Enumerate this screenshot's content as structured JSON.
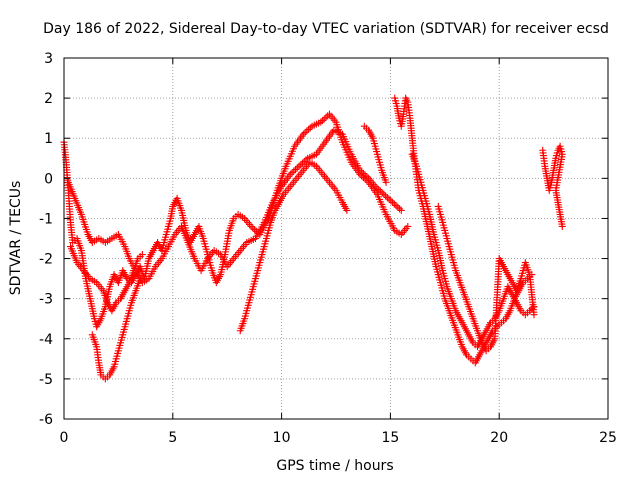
{
  "chart_data": {
    "type": "scatter",
    "title": "Day 186 of 2022, Sidereal Day-to-day VTEC variation (SDTVAR) for receiver ecsd",
    "xlabel": "GPS time / hours",
    "ylabel": "SDTVAR / TECUs",
    "xlim": [
      0,
      25
    ],
    "ylim": [
      -6,
      3
    ],
    "x_ticks": [
      0,
      5,
      10,
      15,
      20,
      25
    ],
    "y_ticks": [
      -6,
      -5,
      -4,
      -3,
      -2,
      -1,
      0,
      1,
      2,
      3
    ],
    "x_tick_labels": [
      "0",
      "5",
      "10",
      "15",
      "20",
      "25"
    ],
    "y_tick_labels": [
      "-6",
      "-5",
      "-4",
      "-3",
      "-2",
      "-1",
      "0",
      "1",
      "2",
      "3"
    ],
    "grid": true,
    "marker": "+",
    "color": "#ff0000",
    "series": [
      {
        "name": "trace-a",
        "points": [
          [
            0.0,
            0.9
          ],
          [
            0.1,
            0.4
          ],
          [
            0.2,
            -0.3
          ],
          [
            0.3,
            -1.1
          ],
          [
            0.4,
            -1.6
          ],
          [
            0.6,
            -1.5
          ],
          [
            0.8,
            -1.8
          ],
          [
            1.0,
            -2.5
          ],
          [
            1.2,
            -3.0
          ],
          [
            1.4,
            -3.5
          ],
          [
            1.5,
            -3.7
          ],
          [
            1.7,
            -3.5
          ],
          [
            1.9,
            -3.2
          ],
          [
            2.1,
            -2.7
          ],
          [
            2.3,
            -2.4
          ],
          [
            2.5,
            -2.6
          ],
          [
            2.7,
            -2.3
          ],
          [
            2.9,
            -2.5
          ],
          [
            3.1,
            -2.6
          ],
          [
            3.3,
            -2.4
          ],
          [
            3.5,
            -2.2
          ],
          [
            3.7,
            -2.5
          ],
          [
            3.9,
            -2.0
          ],
          [
            4.1,
            -1.8
          ],
          [
            4.3,
            -1.6
          ],
          [
            4.5,
            -1.8
          ],
          [
            4.7,
            -1.4
          ],
          [
            4.9,
            -1.0
          ],
          [
            5.0,
            -0.7
          ],
          [
            5.2,
            -0.5
          ],
          [
            5.4,
            -0.8
          ],
          [
            5.6,
            -1.3
          ],
          [
            5.8,
            -1.6
          ],
          [
            6.0,
            -1.4
          ],
          [
            6.2,
            -1.2
          ],
          [
            6.4,
            -1.5
          ],
          [
            6.6,
            -1.9
          ],
          [
            6.8,
            -2.3
          ],
          [
            7.0,
            -2.6
          ],
          [
            7.2,
            -2.4
          ],
          [
            7.4,
            -1.9
          ],
          [
            7.6,
            -1.3
          ],
          [
            7.8,
            -1.0
          ],
          [
            8.0,
            -0.9
          ],
          [
            8.3,
            -1.0
          ],
          [
            8.6,
            -1.2
          ],
          [
            9.0,
            -1.4
          ],
          [
            9.4,
            -1.0
          ],
          [
            9.8,
            -0.3
          ],
          [
            10.2,
            0.3
          ],
          [
            10.6,
            0.8
          ],
          [
            11.0,
            1.1
          ],
          [
            11.4,
            1.3
          ],
          [
            11.8,
            1.4
          ],
          [
            12.2,
            1.6
          ],
          [
            12.5,
            1.4
          ],
          [
            12.8,
            0.9
          ],
          [
            13.2,
            0.4
          ],
          [
            13.6,
            0.1
          ],
          [
            14.0,
            -0.1
          ],
          [
            14.4,
            -0.4
          ],
          [
            14.8,
            -0.9
          ],
          [
            15.2,
            -1.3
          ],
          [
            15.5,
            -1.4
          ],
          [
            15.8,
            -1.2
          ]
        ]
      },
      {
        "name": "trace-b",
        "points": [
          [
            0.2,
            -0.1
          ],
          [
            0.5,
            -0.5
          ],
          [
            0.8,
            -0.9
          ],
          [
            1.1,
            -1.4
          ],
          [
            1.3,
            -1.6
          ],
          [
            1.6,
            -1.5
          ],
          [
            1.9,
            -1.6
          ],
          [
            2.2,
            -1.5
          ],
          [
            2.5,
            -1.4
          ],
          [
            2.8,
            -1.7
          ],
          [
            3.0,
            -2.0
          ],
          [
            3.3,
            -2.3
          ],
          [
            3.6,
            -2.6
          ],
          [
            3.9,
            -2.5
          ],
          [
            4.2,
            -2.2
          ],
          [
            4.5,
            -2.0
          ],
          [
            4.8,
            -1.7
          ],
          [
            5.1,
            -1.4
          ],
          [
            5.4,
            -1.2
          ],
          [
            5.7,
            -1.6
          ],
          [
            6.0,
            -2.0
          ],
          [
            6.3,
            -2.3
          ],
          [
            6.6,
            -2.0
          ],
          [
            6.9,
            -1.8
          ],
          [
            7.2,
            -1.9
          ],
          [
            7.5,
            -2.2
          ],
          [
            7.8,
            -2.0
          ],
          [
            8.1,
            -1.8
          ],
          [
            8.4,
            -1.6
          ],
          [
            8.8,
            -1.5
          ],
          [
            9.2,
            -1.1
          ],
          [
            9.6,
            -0.6
          ],
          [
            10.0,
            -0.2
          ],
          [
            10.4,
            0.1
          ],
          [
            10.8,
            0.3
          ],
          [
            11.2,
            0.5
          ],
          [
            11.6,
            0.6
          ],
          [
            12.0,
            0.9
          ],
          [
            12.4,
            1.2
          ],
          [
            12.8,
            1.1
          ],
          [
            13.2,
            0.6
          ],
          [
            13.6,
            0.2
          ],
          [
            14.0,
            0.0
          ],
          [
            14.3,
            -0.2
          ],
          [
            14.7,
            -0.4
          ],
          [
            15.1,
            -0.6
          ],
          [
            15.5,
            -0.8
          ]
        ]
      },
      {
        "name": "trace-c",
        "points": [
          [
            0.3,
            -1.7
          ],
          [
            0.6,
            -2.1
          ],
          [
            0.9,
            -2.3
          ],
          [
            1.2,
            -2.5
          ],
          [
            1.5,
            -2.6
          ],
          [
            1.8,
            -2.8
          ],
          [
            2.0,
            -3.1
          ],
          [
            2.2,
            -3.3
          ],
          [
            2.4,
            -3.1
          ],
          [
            2.6,
            -3.0
          ],
          [
            2.8,
            -2.8
          ],
          [
            3.0,
            -2.6
          ],
          [
            3.2,
            -2.3
          ],
          [
            3.4,
            -2.0
          ],
          [
            3.6,
            -1.9
          ]
        ]
      },
      {
        "name": "trace-d",
        "points": [
          [
            1.3,
            -3.9
          ],
          [
            1.5,
            -4.2
          ],
          [
            1.6,
            -4.6
          ],
          [
            1.7,
            -4.9
          ],
          [
            1.9,
            -5.0
          ],
          [
            2.1,
            -4.9
          ],
          [
            2.3,
            -4.7
          ],
          [
            2.5,
            -4.3
          ],
          [
            2.7,
            -3.9
          ],
          [
            2.9,
            -3.5
          ],
          [
            3.1,
            -3.1
          ],
          [
            3.3,
            -2.8
          ],
          [
            3.5,
            -2.5
          ]
        ]
      },
      {
        "name": "trace-e",
        "points": [
          [
            8.1,
            -3.8
          ],
          [
            8.3,
            -3.5
          ],
          [
            8.5,
            -3.1
          ],
          [
            8.7,
            -2.7
          ],
          [
            8.9,
            -2.3
          ],
          [
            9.1,
            -1.9
          ],
          [
            9.3,
            -1.5
          ],
          [
            9.5,
            -1.1
          ],
          [
            9.7,
            -0.8
          ],
          [
            9.9,
            -0.6
          ],
          [
            10.1,
            -0.4
          ],
          [
            10.4,
            -0.2
          ],
          [
            10.7,
            0.0
          ],
          [
            11.0,
            0.2
          ],
          [
            11.3,
            0.4
          ],
          [
            11.6,
            0.3
          ],
          [
            11.9,
            0.1
          ],
          [
            12.2,
            -0.1
          ],
          [
            12.5,
            -0.3
          ],
          [
            12.8,
            -0.6
          ],
          [
            13.0,
            -0.8
          ]
        ]
      },
      {
        "name": "trace-f",
        "points": [
          [
            13.8,
            1.3
          ],
          [
            14.0,
            1.2
          ],
          [
            14.2,
            1.0
          ],
          [
            14.4,
            0.6
          ],
          [
            14.6,
            0.2
          ],
          [
            14.8,
            -0.1
          ]
        ]
      },
      {
        "name": "trace-g",
        "points": [
          [
            15.2,
            2.0
          ],
          [
            15.3,
            1.8
          ],
          [
            15.4,
            1.5
          ],
          [
            15.5,
            1.3
          ],
          [
            15.6,
            1.6
          ],
          [
            15.7,
            2.0
          ],
          [
            15.8,
            1.9
          ],
          [
            15.9,
            1.5
          ],
          [
            16.0,
            1.0
          ],
          [
            16.1,
            0.5
          ],
          [
            16.2,
            0.1
          ],
          [
            16.3,
            -0.3
          ],
          [
            16.5,
            -0.7
          ],
          [
            16.7,
            -1.2
          ],
          [
            16.9,
            -1.7
          ],
          [
            17.1,
            -2.2
          ],
          [
            17.3,
            -2.6
          ],
          [
            17.5,
            -3.0
          ],
          [
            17.7,
            -3.3
          ],
          [
            17.9,
            -3.6
          ],
          [
            18.1,
            -3.9
          ],
          [
            18.3,
            -4.2
          ],
          [
            18.5,
            -4.4
          ],
          [
            18.7,
            -4.5
          ],
          [
            18.9,
            -4.6
          ],
          [
            19.1,
            -4.4
          ],
          [
            19.3,
            -4.2
          ],
          [
            19.5,
            -4.0
          ],
          [
            19.7,
            -3.8
          ],
          [
            19.9,
            -3.7
          ],
          [
            20.1,
            -3.6
          ],
          [
            20.3,
            -3.5
          ],
          [
            20.5,
            -3.3
          ],
          [
            20.7,
            -3.0
          ],
          [
            20.9,
            -2.8
          ],
          [
            21.1,
            -2.6
          ],
          [
            21.3,
            -2.5
          ],
          [
            21.5,
            -2.4
          ]
        ]
      },
      {
        "name": "trace-h",
        "points": [
          [
            16.0,
            0.6
          ],
          [
            16.2,
            0.3
          ],
          [
            16.4,
            -0.1
          ],
          [
            16.6,
            -0.5
          ],
          [
            16.8,
            -0.9
          ],
          [
            17.0,
            -1.4
          ],
          [
            17.2,
            -1.8
          ],
          [
            17.4,
            -2.3
          ],
          [
            17.6,
            -2.7
          ],
          [
            17.8,
            -3.0
          ],
          [
            18.0,
            -3.3
          ],
          [
            18.2,
            -3.5
          ],
          [
            18.4,
            -3.7
          ],
          [
            18.6,
            -3.9
          ],
          [
            18.8,
            -4.1
          ],
          [
            19.0,
            -4.2
          ],
          [
            19.2,
            -4.0
          ],
          [
            19.4,
            -3.8
          ],
          [
            19.6,
            -3.6
          ],
          [
            19.8,
            -3.5
          ],
          [
            20.0,
            -3.3
          ],
          [
            20.2,
            -3.0
          ],
          [
            20.4,
            -2.7
          ],
          [
            20.6,
            -2.9
          ],
          [
            20.8,
            -3.1
          ],
          [
            21.0,
            -3.3
          ],
          [
            21.2,
            -3.4
          ],
          [
            21.4,
            -3.3
          ],
          [
            21.6,
            -3.2
          ]
        ]
      },
      {
        "name": "trace-i",
        "points": [
          [
            17.2,
            -0.7
          ],
          [
            17.4,
            -1.1
          ],
          [
            17.6,
            -1.5
          ],
          [
            17.8,
            -1.9
          ],
          [
            18.0,
            -2.3
          ],
          [
            18.2,
            -2.6
          ],
          [
            18.4,
            -2.9
          ],
          [
            18.6,
            -3.2
          ],
          [
            18.8,
            -3.5
          ],
          [
            19.0,
            -3.8
          ],
          [
            19.2,
            -4.1
          ],
          [
            19.4,
            -4.3
          ],
          [
            19.6,
            -4.2
          ],
          [
            19.8,
            -4.0
          ],
          [
            20.0,
            -2.0
          ],
          [
            20.2,
            -2.2
          ],
          [
            20.4,
            -2.4
          ],
          [
            20.6,
            -2.6
          ],
          [
            20.8,
            -2.8
          ],
          [
            21.0,
            -2.5
          ],
          [
            21.2,
            -2.1
          ],
          [
            21.4,
            -2.4
          ],
          [
            21.6,
            -3.4
          ]
        ]
      },
      {
        "name": "trace-j",
        "points": [
          [
            22.0,
            0.7
          ],
          [
            22.1,
            0.3
          ],
          [
            22.2,
            0.0
          ],
          [
            22.3,
            -0.3
          ],
          [
            22.4,
            -0.1
          ],
          [
            22.5,
            0.2
          ],
          [
            22.6,
            0.5
          ],
          [
            22.7,
            0.7
          ],
          [
            22.8,
            0.8
          ],
          [
            22.9,
            0.6
          ],
          [
            22.6,
            -0.3
          ],
          [
            22.7,
            -0.6
          ],
          [
            22.8,
            -0.9
          ],
          [
            22.9,
            -1.2
          ]
        ]
      }
    ]
  }
}
